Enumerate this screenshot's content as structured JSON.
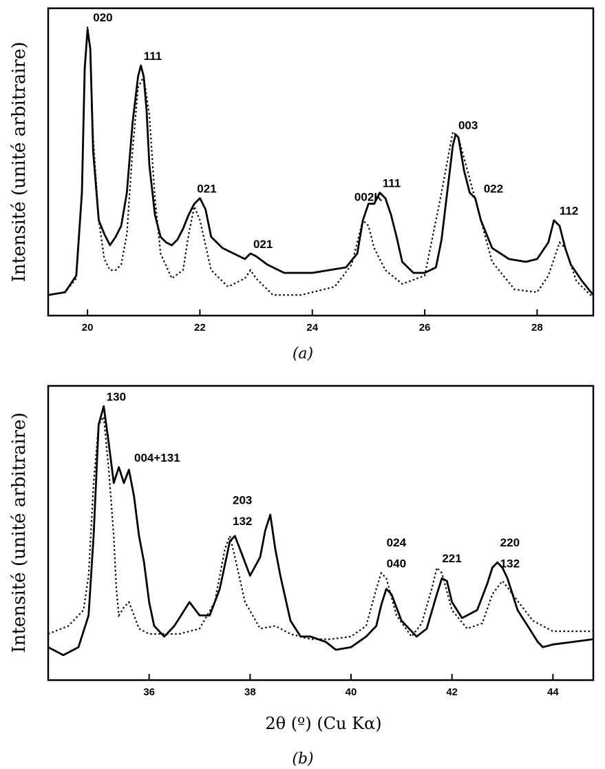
{
  "chart_data": [
    {
      "type": "line",
      "panel_label": "(a)",
      "ylabel": "Intensité (unité arbitraire)",
      "xlabel": "",
      "xlim": [
        19.3,
        29.0
      ],
      "ylim": [
        0,
        100
      ],
      "xticks": [
        "20",
        "22",
        "24",
        "26",
        "28"
      ],
      "xtick_values": [
        20,
        22,
        24,
        26,
        28
      ],
      "series": [
        {
          "style": "solid",
          "x": [
            19.3,
            19.6,
            19.8,
            19.9,
            19.95,
            20.0,
            20.05,
            20.1,
            20.2,
            20.3,
            20.4,
            20.5,
            20.6,
            20.7,
            20.8,
            20.9,
            20.95,
            21.0,
            21.05,
            21.1,
            21.2,
            21.3,
            21.4,
            21.5,
            21.6,
            21.7,
            21.8,
            21.9,
            22.0,
            22.1,
            22.2,
            22.4,
            22.6,
            22.8,
            22.9,
            23.0,
            23.2,
            23.5,
            24.0,
            24.3,
            24.6,
            24.8,
            24.9,
            25.0,
            25.1,
            25.2,
            25.3,
            25.4,
            25.5,
            25.6,
            25.8,
            26.0,
            26.2,
            26.3,
            26.4,
            26.5,
            26.55,
            26.6,
            26.7,
            26.8,
            26.9,
            27.0,
            27.2,
            27.5,
            27.8,
            28.0,
            28.2,
            28.3,
            28.4,
            28.5,
            28.6,
            28.8,
            29.0
          ],
          "y": [
            3,
            4,
            10,
            40,
            85,
            99,
            92,
            55,
            30,
            25,
            21,
            24,
            28,
            40,
            65,
            82,
            86,
            82,
            70,
            50,
            32,
            24,
            22,
            21,
            23,
            27,
            32,
            36,
            38,
            34,
            24,
            20,
            18,
            16,
            18,
            17,
            14,
            11,
            11,
            12,
            13,
            18,
            30,
            36,
            36,
            40,
            38,
            32,
            24,
            15,
            11,
            11,
            13,
            23,
            40,
            57,
            61,
            60,
            48,
            40,
            38,
            30,
            20,
            16,
            15,
            16,
            22,
            30,
            28,
            20,
            14,
            8,
            3
          ]
        },
        {
          "style": "dotted",
          "x": [
            19.3,
            19.6,
            19.8,
            19.9,
            19.95,
            20.0,
            20.05,
            20.1,
            20.2,
            20.3,
            20.4,
            20.5,
            20.6,
            20.7,
            20.8,
            20.9,
            21.0,
            21.1,
            21.2,
            21.3,
            21.5,
            21.7,
            21.8,
            21.9,
            22.0,
            22.2,
            22.5,
            22.8,
            22.9,
            23.0,
            23.3,
            23.8,
            24.4,
            24.7,
            24.9,
            25.0,
            25.1,
            25.3,
            25.6,
            26.0,
            26.3,
            26.5,
            26.6,
            26.8,
            27.0,
            27.2,
            27.6,
            28.0,
            28.2,
            28.4,
            28.5,
            28.7,
            29.0
          ],
          "y": [
            3,
            4,
            9,
            40,
            85,
            100,
            92,
            60,
            30,
            16,
            12,
            12,
            14,
            25,
            55,
            78,
            82,
            68,
            38,
            18,
            9,
            12,
            25,
            35,
            30,
            12,
            6,
            9,
            12,
            9,
            3,
            3,
            6,
            14,
            30,
            28,
            20,
            12,
            7,
            10,
            40,
            62,
            60,
            45,
            30,
            15,
            5,
            4,
            10,
            22,
            20,
            8,
            2
          ]
        }
      ],
      "annotations": [
        {
          "text": "020",
          "x": 20.05,
          "y": 100
        },
        {
          "text": "111",
          "x": 20.95,
          "y": 86,
          "overbars": "1 1̄ 1̄"
        },
        {
          "text": "021",
          "x": 21.9,
          "y": 38,
          "overbars": "0 2 1̄"
        },
        {
          "text": "021",
          "x": 22.9,
          "y": 18
        },
        {
          "text": "002K",
          "x": 24.7,
          "y": 35
        },
        {
          "text": "111",
          "x": 25.2,
          "y": 40,
          "overbars": "1̄ 1̄ 1"
        },
        {
          "text": "003",
          "x": 26.55,
          "y": 61
        },
        {
          "text": "022",
          "x": 27.0,
          "y": 38
        },
        {
          "text": "112",
          "x": 28.35,
          "y": 30,
          "overbars": "1 1 2̄"
        }
      ]
    },
    {
      "type": "line",
      "panel_label": "(b)",
      "ylabel": "Intensité (unité arbitraire)",
      "xlabel": "2θ (º) (Cu Kα)",
      "xlim": [
        34.0,
        44.8
      ],
      "ylim": [
        0,
        100
      ],
      "xticks": [
        "36",
        "38",
        "40",
        "42",
        "44"
      ],
      "xtick_values": [
        36,
        38,
        40,
        42,
        44
      ],
      "series": [
        {
          "style": "solid",
          "x": [
            34.0,
            34.3,
            34.6,
            34.8,
            34.9,
            35.0,
            35.1,
            35.2,
            35.3,
            35.4,
            35.5,
            35.6,
            35.7,
            35.8,
            35.9,
            36.0,
            36.1,
            36.3,
            36.5,
            36.8,
            37.0,
            37.2,
            37.4,
            37.6,
            37.7,
            37.8,
            38.0,
            38.2,
            38.3,
            38.4,
            38.5,
            38.6,
            38.8,
            39.0,
            39.2,
            39.5,
            39.7,
            40.0,
            40.3,
            40.5,
            40.6,
            40.7,
            40.8,
            41.0,
            41.3,
            41.5,
            41.7,
            41.8,
            41.9,
            42.0,
            42.2,
            42.5,
            42.7,
            42.8,
            42.9,
            43.0,
            43.1,
            43.3,
            43.5,
            43.7,
            43.8,
            44.0,
            44.4,
            44.8
          ],
          "y": [
            8,
            5,
            8,
            20,
            50,
            92,
            99,
            85,
            70,
            76,
            70,
            75,
            65,
            50,
            40,
            25,
            16,
            12,
            16,
            25,
            20,
            20,
            30,
            48,
            50,
            45,
            35,
            42,
            52,
            58,
            45,
            35,
            18,
            12,
            12,
            10,
            7,
            8,
            12,
            16,
            24,
            30,
            28,
            18,
            12,
            15,
            28,
            34,
            33,
            25,
            19,
            22,
            32,
            38,
            40,
            38,
            34,
            22,
            16,
            10,
            8,
            9,
            10,
            11
          ]
        },
        {
          "style": "dotted",
          "x": [
            34.0,
            34.4,
            34.7,
            34.8,
            34.9,
            35.0,
            35.1,
            35.2,
            35.3,
            35.35,
            35.4,
            35.5,
            35.6,
            35.7,
            35.8,
            35.9,
            36.0,
            36.2,
            36.6,
            37.0,
            37.3,
            37.5,
            37.6,
            37.7,
            37.9,
            38.2,
            38.5,
            38.8,
            39.2,
            39.6,
            40.0,
            40.3,
            40.5,
            40.6,
            40.7,
            40.9,
            41.2,
            41.4,
            41.6,
            41.7,
            41.8,
            42.0,
            42.3,
            42.6,
            42.8,
            43.0,
            43.2,
            43.6,
            44.0,
            44.8
          ],
          "y": [
            13,
            16,
            22,
            35,
            70,
            92,
            95,
            75,
            50,
            30,
            20,
            23,
            25,
            20,
            15,
            14,
            13,
            13,
            13,
            15,
            25,
            45,
            50,
            42,
            25,
            15,
            16,
            13,
            11,
            11,
            12,
            16,
            30,
            36,
            34,
            20,
            12,
            17,
            30,
            38,
            36,
            22,
            15,
            17,
            28,
            33,
            28,
            18,
            14,
            14
          ]
        }
      ],
      "annotations": [
        {
          "text": "130",
          "x": 35.1,
          "y": 99,
          "overbars": "1 3̄ 0"
        },
        {
          "text": "004+131",
          "x": 35.65,
          "y": 76,
          "overbars": "0 0 4 + 1 3̄ 1"
        },
        {
          "text": "203",
          "x": 37.6,
          "y": 60
        },
        {
          "text": "132",
          "x": 37.6,
          "y": 52
        },
        {
          "text": "024",
          "x": 40.65,
          "y": 44,
          "overbars": "0 2̄ 4"
        },
        {
          "text": "040",
          "x": 40.65,
          "y": 36
        },
        {
          "text": "221",
          "x": 41.75,
          "y": 38
        },
        {
          "text": "220",
          "x": 42.9,
          "y": 44,
          "overbars": "2̄ 2 0"
        },
        {
          "text": "132",
          "x": 42.9,
          "y": 36,
          "overbars": "1̄ 3 2"
        }
      ]
    }
  ]
}
